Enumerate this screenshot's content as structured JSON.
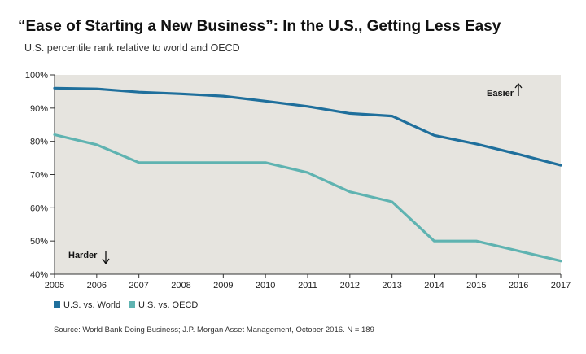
{
  "title": "“Ease of Starting a New Business”: In the U.S., Getting Less Easy",
  "subtitle": "U.S. percentile rank relative to world and OECD",
  "source": "Source: World Bank Doing Business; J.P. Morgan Asset Management, October 2016. N = 189",
  "chart_data": {
    "type": "line",
    "x": [
      2005,
      2006,
      2007,
      2008,
      2009,
      2010,
      2011,
      2012,
      2013,
      2014,
      2015,
      2016,
      2017
    ],
    "ylim": [
      40,
      100
    ],
    "yticks": [
      40,
      50,
      60,
      70,
      80,
      90,
      100
    ],
    "ytick_labels": [
      "40%",
      "50%",
      "60%",
      "70%",
      "80%",
      "90%",
      "100%"
    ],
    "series": [
      {
        "name": "U.S. vs. World",
        "color": "#1f6f9c",
        "values": [
          96,
          95.8,
          94.8,
          94.3,
          93.6,
          92.1,
          90.5,
          88.4,
          87.6,
          81.8,
          79.2,
          76.1,
          72.8
        ]
      },
      {
        "name": "U.S. vs. OECD",
        "color": "#5fb3b1",
        "values": [
          82,
          79,
          73.6,
          73.6,
          73.6,
          73.6,
          70.6,
          64.8,
          61.8,
          50,
          50,
          47,
          44
        ]
      }
    ],
    "annotations": [
      {
        "text": "Easier",
        "arrow": "up"
      },
      {
        "text": "Harder",
        "arrow": "down"
      }
    ],
    "plot_background": "#e6e4df",
    "grid": false,
    "legend": "bottom-left"
  }
}
